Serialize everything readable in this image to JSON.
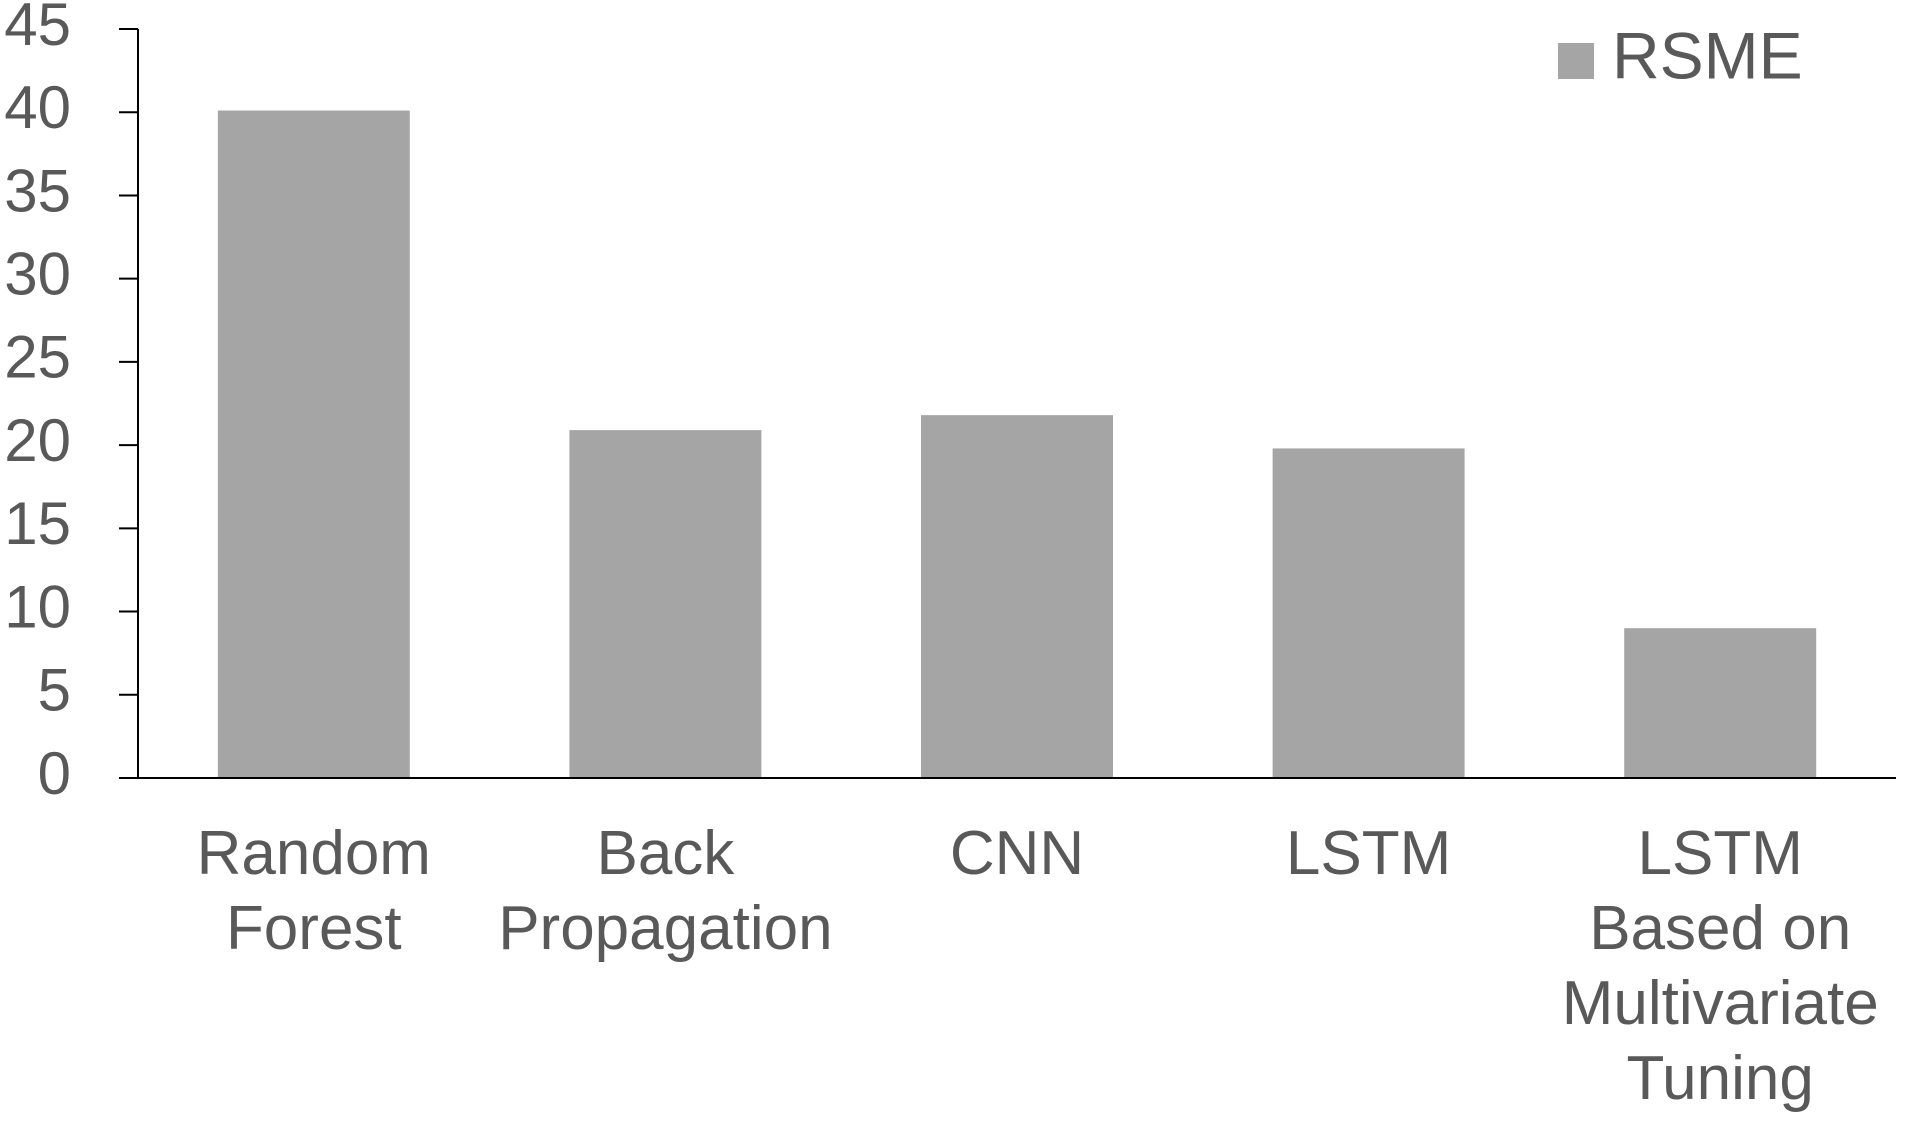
{
  "chart_data": {
    "type": "bar",
    "categories": [
      "Random Forest",
      "Back Propagation",
      "CNN",
      "LSTM",
      "LSTM Based on Multivariate Tuning"
    ],
    "series": [
      {
        "name": "RSME",
        "color": "#a5a5a5",
        "values": [
          40.1,
          20.9,
          21.8,
          19.8,
          9.0
        ]
      }
    ],
    "ylim": [
      0,
      45
    ],
    "yticks": [
      0,
      5,
      10,
      15,
      20,
      25,
      30,
      35,
      40,
      45
    ],
    "legend": "top-right"
  }
}
